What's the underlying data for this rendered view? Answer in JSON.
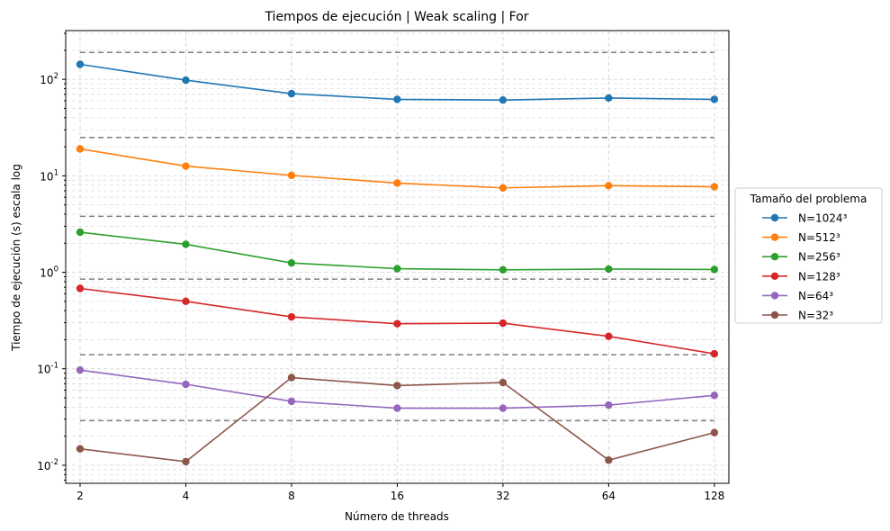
{
  "chart_data": {
    "type": "line",
    "title": "Tiempos de ejecución | Weak scaling | For",
    "xlabel": "Número de threads",
    "ylabel": "Tiempo de ejecución (s) escala log",
    "x_scale": "log2",
    "y_scale": "log",
    "grid": true,
    "categories": [
      "2",
      "4",
      "8",
      "16",
      "32",
      "64",
      "128"
    ],
    "x": [
      2,
      4,
      8,
      16,
      32,
      64,
      128
    ],
    "ylim": [
      0.0065,
      320
    ],
    "y_tick_labels": [
      {
        "base": "10",
        "exp": "-2"
      },
      {
        "base": "10",
        "exp": "-1"
      },
      {
        "base": "10",
        "exp": "0"
      },
      {
        "base": "10",
        "exp": "1"
      },
      {
        "base": "10",
        "exp": "2"
      }
    ],
    "legend": {
      "title": "Tamaño del problema",
      "placement": "outside-right"
    },
    "series": [
      {
        "name": "N=1024³",
        "color": "#1f77b4",
        "values": [
          143,
          98,
          71,
          62,
          61,
          64,
          62
        ]
      },
      {
        "name": "N=512³",
        "color": "#ff7f0e",
        "values": [
          19,
          12.6,
          10.1,
          8.4,
          7.5,
          7.9,
          7.7
        ]
      },
      {
        "name": "N=256³",
        "color": "#2ca02c",
        "values": [
          2.6,
          1.95,
          1.25,
          1.09,
          1.06,
          1.08,
          1.07
        ]
      },
      {
        "name": "N=128³",
        "color": "#d62728",
        "values": [
          0.68,
          0.5,
          0.345,
          0.293,
          0.297,
          0.217,
          0.143
        ]
      },
      {
        "name": "N=64³",
        "color": "#9467bd",
        "values": [
          0.097,
          0.069,
          0.046,
          0.039,
          0.039,
          0.042,
          0.053
        ]
      },
      {
        "name": "N=32³",
        "color": "#8c564b",
        "values": [
          0.0148,
          0.0109,
          0.081,
          0.067,
          0.072,
          0.0113,
          0.0218
        ]
      }
    ],
    "reference_lines": {
      "color": "#808080",
      "style": "dashed",
      "values": [
        190,
        25,
        3.8,
        0.85,
        0.14,
        0.029
      ]
    }
  }
}
